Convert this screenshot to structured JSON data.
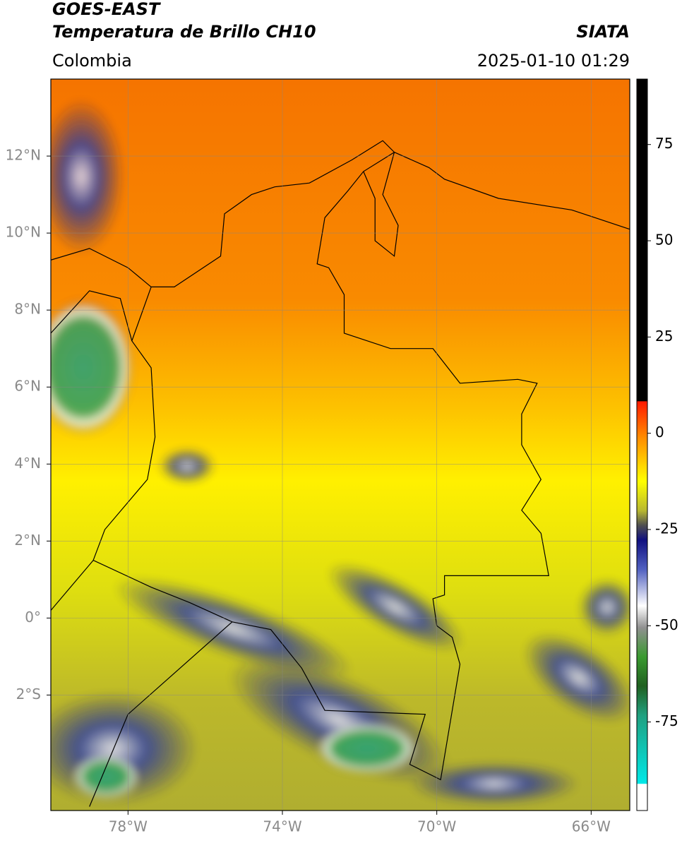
{
  "chart_data": {
    "type": "map",
    "title": "GOES-EAST",
    "subtitle": "Temperatura de Brillo CH10",
    "source": "SIATA",
    "region": "Colombia",
    "datetime": "2025-01-10 01:29",
    "xlim": [
      -80,
      -65
    ],
    "ylim": [
      -5,
      14
    ],
    "xticks": [
      {
        "value": -78,
        "label": "78°W"
      },
      {
        "value": -74,
        "label": "74°W"
      },
      {
        "value": -70,
        "label": "70°W"
      },
      {
        "value": -66,
        "label": "66°W"
      }
    ],
    "yticks": [
      {
        "value": 12,
        "label": "12°N"
      },
      {
        "value": 10,
        "label": "10°N"
      },
      {
        "value": 8,
        "label": "8°N"
      },
      {
        "value": 6,
        "label": "6°N"
      },
      {
        "value": 4,
        "label": "4°N"
      },
      {
        "value": 2,
        "label": "2°N"
      },
      {
        "value": 0,
        "label": "0°"
      },
      {
        "value": -2,
        "label": "2°S"
      }
    ],
    "grid": true,
    "colorbar": {
      "lim": [
        -98,
        92
      ],
      "ticks": [
        75,
        50,
        25,
        0,
        -25,
        -50,
        -75
      ]
    }
  }
}
